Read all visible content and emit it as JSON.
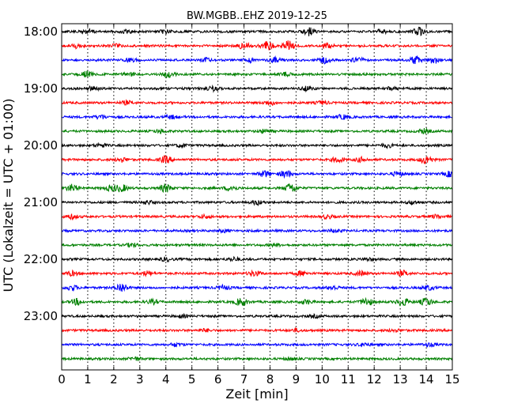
{
  "chart_data": {
    "type": "line",
    "title": "BW.MGBB..EHZ 2019-12-25",
    "xlabel": "Zeit  [min]",
    "ylabel": "UTC (Lokalzeit = UTC + 01:00)",
    "xlim": [
      0,
      15
    ],
    "x_ticks": [
      "0",
      "1",
      "2",
      "3",
      "4",
      "5",
      "6",
      "7",
      "8",
      "9",
      "10",
      "11",
      "12",
      "13",
      "14",
      "15"
    ],
    "y_ticks": [
      "18:00",
      "19:00",
      "20:00",
      "21:00",
      "22:00",
      "23:00"
    ],
    "grid": "vertical dotted",
    "trace_colors": [
      "#000000",
      "#ff0000",
      "#0000ff",
      "#008000"
    ],
    "traces": [
      {
        "start": "18:00",
        "bursts": [
          [
            1.0,
            0.6
          ],
          [
            2.5,
            0.4
          ],
          [
            4.0,
            0.4
          ],
          [
            9.5,
            0.9
          ],
          [
            12.3,
            0.5
          ],
          [
            13.7,
            1.0
          ]
        ]
      },
      {
        "start": "18:15",
        "bursts": [
          [
            0.6,
            0.5
          ],
          [
            2.0,
            0.4
          ],
          [
            7.0,
            0.7
          ],
          [
            7.9,
            1.0
          ],
          [
            8.7,
            1.1
          ],
          [
            10.2,
            0.5
          ]
        ]
      },
      {
        "start": "18:30",
        "bursts": [
          [
            2.7,
            0.5
          ],
          [
            5.6,
            0.4
          ],
          [
            7.2,
            0.5
          ],
          [
            8.2,
            0.6
          ],
          [
            10.1,
            0.7
          ],
          [
            11.4,
            0.6
          ],
          [
            13.6,
            0.9
          ],
          [
            14.3,
            0.7
          ]
        ]
      },
      {
        "start": "18:45",
        "bursts": [
          [
            1.0,
            0.7
          ],
          [
            2.6,
            0.4
          ],
          [
            4.1,
            0.7
          ],
          [
            8.6,
            0.4
          ]
        ]
      },
      {
        "start": "19:00",
        "bursts": [
          [
            1.2,
            0.5
          ],
          [
            5.8,
            0.5
          ],
          [
            9.4,
            0.5
          ],
          [
            12.7,
            0.4
          ]
        ]
      },
      {
        "start": "19:15",
        "bursts": [
          [
            2.5,
            0.4
          ],
          [
            8.0,
            0.5
          ],
          [
            10.0,
            0.4
          ]
        ]
      },
      {
        "start": "19:30",
        "bursts": [
          [
            1.5,
            0.5
          ],
          [
            4.2,
            0.4
          ],
          [
            10.8,
            0.5
          ]
        ]
      },
      {
        "start": "19:45",
        "bursts": [
          [
            3.8,
            0.4
          ],
          [
            7.8,
            0.4
          ],
          [
            13.9,
            0.5
          ]
        ]
      },
      {
        "start": "20:00",
        "bursts": [
          [
            1.5,
            0.4
          ],
          [
            4.6,
            0.4
          ],
          [
            12.5,
            0.4
          ]
        ]
      },
      {
        "start": "20:15",
        "bursts": [
          [
            2.3,
            0.5
          ],
          [
            4.0,
            0.8
          ],
          [
            10.6,
            0.6
          ],
          [
            11.5,
            0.5
          ],
          [
            14.0,
            1.0
          ]
        ]
      },
      {
        "start": "20:30",
        "bursts": [
          [
            7.8,
            0.7
          ],
          [
            8.6,
            0.8
          ],
          [
            12.9,
            0.5
          ],
          [
            14.9,
            0.6
          ]
        ]
      },
      {
        "start": "20:45",
        "bursts": [
          [
            0.4,
            0.8
          ],
          [
            1.9,
            0.6
          ],
          [
            2.3,
            0.8
          ],
          [
            4.0,
            0.9
          ],
          [
            6.5,
            0.6
          ],
          [
            8.8,
            1.1
          ]
        ]
      },
      {
        "start": "21:00",
        "bursts": [
          [
            3.3,
            0.4
          ],
          [
            7.5,
            0.5
          ],
          [
            13.5,
            0.4
          ]
        ]
      },
      {
        "start": "21:15",
        "bursts": [
          [
            0.4,
            0.5
          ],
          [
            5.5,
            0.4
          ],
          [
            10.2,
            0.4
          ],
          [
            14.4,
            0.4
          ]
        ]
      },
      {
        "start": "21:30",
        "bursts": [
          [
            6.2,
            0.3
          ],
          [
            10.5,
            0.3
          ]
        ]
      },
      {
        "start": "21:45",
        "bursts": [
          [
            2.7,
            0.4
          ],
          [
            8.2,
            0.3
          ]
        ]
      },
      {
        "start": "22:00",
        "bursts": [
          [
            4.0,
            0.4
          ],
          [
            6.6,
            0.4
          ],
          [
            11.8,
            0.3
          ]
        ]
      },
      {
        "start": "22:15",
        "bursts": [
          [
            0.4,
            0.5
          ],
          [
            3.3,
            0.5
          ],
          [
            7.4,
            0.6
          ],
          [
            9.2,
            0.5
          ],
          [
            11.5,
            0.5
          ],
          [
            13.1,
            0.6
          ]
        ]
      },
      {
        "start": "22:30",
        "bursts": [
          [
            0.4,
            0.6
          ],
          [
            2.3,
            1.1
          ],
          [
            6.2,
            0.5
          ],
          [
            10.4,
            0.5
          ],
          [
            14.1,
            0.5
          ]
        ]
      },
      {
        "start": "22:45",
        "bursts": [
          [
            0.6,
            0.7
          ],
          [
            3.5,
            0.5
          ],
          [
            6.9,
            0.9
          ],
          [
            9.4,
            0.5
          ],
          [
            11.7,
            0.9
          ],
          [
            13.1,
            1.0
          ],
          [
            14.0,
            0.9
          ]
        ]
      },
      {
        "start": "23:00",
        "bursts": [
          [
            4.6,
            0.3
          ],
          [
            9.7,
            0.3
          ]
        ]
      },
      {
        "start": "23:15",
        "bursts": [
          [
            5.5,
            0.3
          ],
          [
            9.0,
            0.3
          ],
          [
            12.8,
            0.3
          ]
        ]
      },
      {
        "start": "23:30",
        "bursts": [
          [
            4.4,
            0.4
          ],
          [
            11.6,
            0.4
          ],
          [
            14.1,
            0.4
          ]
        ]
      },
      {
        "start": "23:45",
        "bursts": [
          [
            2.8,
            0.4
          ],
          [
            8.8,
            0.3
          ]
        ]
      }
    ]
  }
}
